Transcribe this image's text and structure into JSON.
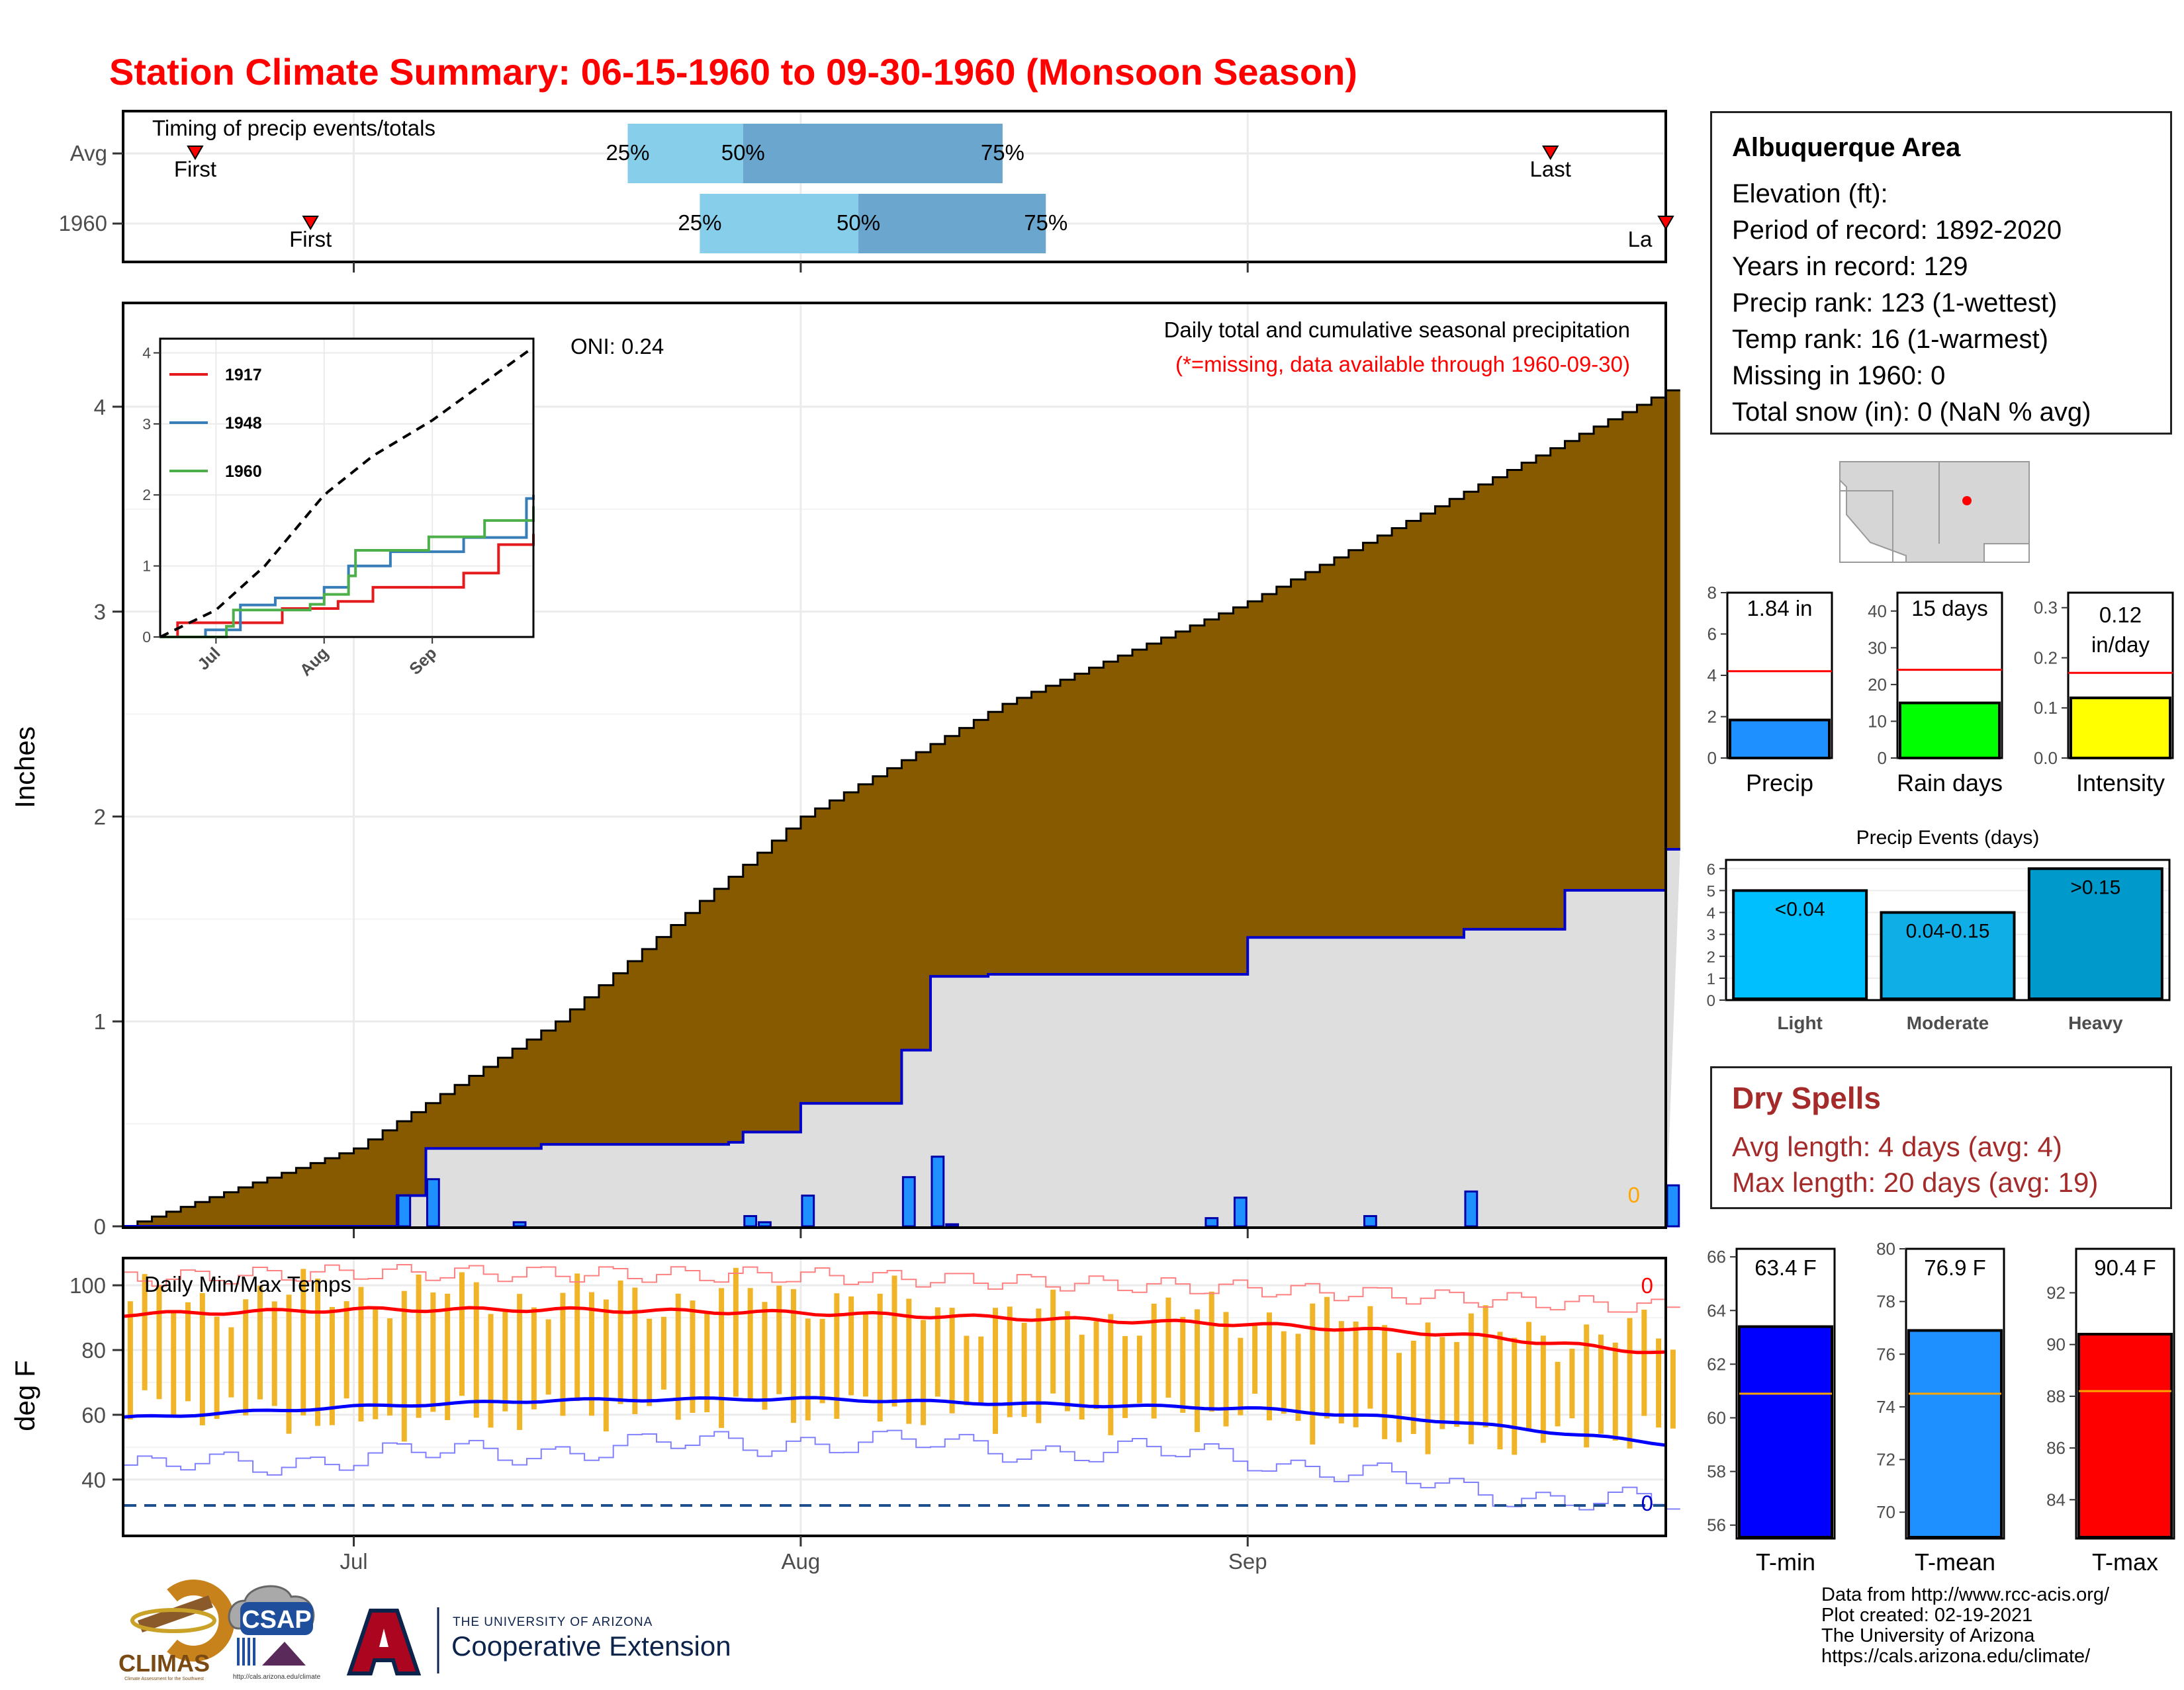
{
  "title": "Station Climate Summary: 06-15-1960 to 09-30-1960 (Monsoon Season)",
  "colors": {
    "title_red": "#ff0000",
    "cumulative_brown": "#875a00",
    "current_year_blue": "#0000cc",
    "daily_bar_blue": "#1e90ff",
    "tmin_blue": "#0000ff",
    "tmean_blue": "#1e90ff",
    "tmax_red": "#ff0000",
    "range_orange": "#f0b429",
    "timing_light": "#87ceeb",
    "timing_dark": "#6aa6cd",
    "precip_bar": "#1e90ff",
    "raindays_bar": "#00ff00",
    "intensity_bar": "#ffff00",
    "event_light": "#00bfff",
    "event_moderate": "#10aee6",
    "event_heavy": "#0099cc",
    "dry_spell_text": "#a52a2a"
  },
  "timing_panel": {
    "label": "Timing of precip events/totals",
    "rows": [
      {
        "name": "Avg",
        "first_date": "06-20",
        "last_date": "09-22",
        "p25": "07-20",
        "p50": "07-28",
        "p75": "08-15",
        "first_label": "First",
        "last_label": "Last",
        "pct_labels": [
          "25%",
          "50%",
          "75%"
        ]
      },
      {
        "name": "1960",
        "first_date": "06-28",
        "last_date": "09-30",
        "p25": "07-25",
        "p50": "08-05",
        "p75": "08-18",
        "first_label": "First",
        "last_label": "La",
        "pct_labels": [
          "25%",
          "50%",
          "75%"
        ]
      }
    ]
  },
  "main_panel": {
    "ylabel": "Inches",
    "oni_label": "ONI: 0.24",
    "subtitle": "Daily total and cumulative seasonal precipitation",
    "note": "(*=missing, data available through 1960-09-30)",
    "missing_count": "0",
    "x_ticks": [
      "Jul",
      "Aug",
      "Sep"
    ],
    "y_ticks": [
      "0",
      "1",
      "2",
      "3",
      "4"
    ]
  },
  "inset": {
    "y_ticks": [
      "0",
      "1",
      "2",
      "3",
      "4"
    ],
    "x_ticks": [
      "Jul",
      "Aug",
      "Sep"
    ],
    "legend": [
      {
        "name": "1917",
        "color": "#e41a1c"
      },
      {
        "name": "1948",
        "color": "#377eb8"
      },
      {
        "name": "1960",
        "color": "#4daf4a"
      }
    ]
  },
  "temp_panel": {
    "label": "Daily Min/Max Temps",
    "ylabel": "deg F",
    "y_ticks": [
      "40",
      "60",
      "80",
      "100"
    ],
    "max_missing": "0",
    "min_missing": "0",
    "freeze_line": 32
  },
  "station": {
    "name": "Albuquerque Area",
    "rows": [
      "Elevation (ft):",
      "Period of record: 1892-2020",
      "Years in record: 129",
      "Precip rank: 123 (1-wettest)",
      "Temp rank: 16 (1-warmest)",
      "Missing in 1960: 0",
      "Total snow (in): 0 (NaN % avg)"
    ]
  },
  "summary_bars": [
    {
      "label": "Precip",
      "value": 1.84,
      "avg": 4.2,
      "ylim": [
        0,
        8
      ],
      "ticks": [
        "0",
        "2",
        "4",
        "6",
        "8"
      ],
      "text1": "1.84 in",
      "text2": ""
    },
    {
      "label": "Rain days",
      "value": 15,
      "avg": 24,
      "ylim": [
        0,
        45
      ],
      "ticks": [
        "0",
        "10",
        "20",
        "30",
        "40"
      ],
      "text1": "15 days",
      "text2": ""
    },
    {
      "label": "Intensity",
      "value": 0.12,
      "avg": 0.17,
      "ylim": [
        0,
        0.33
      ],
      "ticks": [
        "0.0",
        "0.1",
        "0.2",
        "0.3"
      ],
      "text1": "0.12",
      "text2": "in/day"
    }
  ],
  "precip_events": {
    "title": "Precip Events (days)",
    "y_ticks": [
      "0",
      "1",
      "2",
      "3",
      "4",
      "5",
      "6"
    ],
    "bars": [
      {
        "label": "Light",
        "value": 5,
        "text": "<0.04"
      },
      {
        "label": "Moderate",
        "value": 4,
        "text": "0.04-0.15"
      },
      {
        "label": "Heavy",
        "value": 6,
        "text": ">0.15"
      }
    ]
  },
  "dry_spells": {
    "title": "Dry Spells",
    "avg_length": "Avg length: 4 days (avg: 4)",
    "max_length": "Max length: 20 days (avg: 19)"
  },
  "temp_bars": [
    {
      "label": "T-min",
      "value": 63.4,
      "avg": 60.9,
      "ylim": [
        55.5,
        66.3
      ],
      "ticks": [
        "56",
        "58",
        "60",
        "62",
        "64",
        "66"
      ],
      "text": "63.4 F"
    },
    {
      "label": "T-mean",
      "value": 76.9,
      "avg": 74.5,
      "ylim": [
        69,
        80
      ],
      "ticks": [
        "70",
        "72",
        "74",
        "76",
        "78",
        "80"
      ],
      "text": "76.9 F"
    },
    {
      "label": "T-max",
      "value": 90.4,
      "avg": 88.2,
      "ylim": [
        82.5,
        93.7
      ],
      "ticks": [
        "84",
        "86",
        "88",
        "90",
        "92"
      ],
      "text": "90.4 F"
    }
  ],
  "logos": [
    "CLIMAS",
    "CSAP",
    "THE UNIVERSITY OF ARIZONA",
    "Cooperative Extension"
  ],
  "logo_small": [
    "Climate Assessment for the Southwest",
    "http://cals.arizona.edu/climate"
  ],
  "credits": [
    "Data from http://www.rcc-acis.org/",
    "Plot created: 02-19-2021",
    "The University of Arizona",
    "https://cals.arizona.edu/climate/"
  ],
  "chart_data": [
    {
      "type": "area",
      "name": "cumulative precipitation",
      "x_range": [
        "06-15",
        "09-30"
      ],
      "ylim": [
        0,
        4.5
      ],
      "avg_cumulative": {
        "x": [
          "06-15",
          "07-01",
          "07-15",
          "08-01",
          "08-15",
          "09-01",
          "09-15",
          "09-30"
        ],
        "y": [
          0,
          0.38,
          1.0,
          2.0,
          2.55,
          3.05,
          3.55,
          4.08
        ]
      },
      "year_cumulative": {
        "x": [
          "06-15",
          "07-03",
          "07-04",
          "07-06",
          "07-14",
          "07-27",
          "07-28",
          "08-01",
          "08-08",
          "08-10",
          "08-14",
          "09-01",
          "09-16",
          "09-23",
          "09-29",
          "09-30"
        ],
        "y": [
          0,
          0,
          0.15,
          0.38,
          0.4,
          0.41,
          0.46,
          0.6,
          0.86,
          1.22,
          1.23,
          1.41,
          1.45,
          1.64,
          1.64,
          1.84
        ]
      },
      "daily": {
        "x": [
          "07-04",
          "07-06",
          "07-12",
          "07-28",
          "07-29",
          "08-01",
          "08-08",
          "08-10",
          "08-11",
          "08-29",
          "08-31",
          "09-09",
          "09-16",
          "09-30"
        ],
        "y": [
          0.15,
          0.23,
          0.02,
          0.05,
          0.02,
          0.15,
          0.24,
          0.34,
          0.01,
          0.04,
          0.14,
          0.05,
          0.17,
          0.2
        ]
      }
    },
    {
      "type": "line",
      "name": "inset historical cumulative",
      "x_range": [
        "06-15",
        "09-30"
      ],
      "ylim": [
        0,
        4.2
      ],
      "avg": {
        "x": [
          "06-15",
          "07-01",
          "07-15",
          "08-01",
          "08-15",
          "09-01",
          "09-15",
          "09-30"
        ],
        "y": [
          0,
          0.38,
          1.0,
          2.0,
          2.55,
          3.05,
          3.55,
          4.08
        ]
      },
      "series": [
        {
          "name": "1917",
          "x": [
            "06-15",
            "06-20",
            "07-20",
            "08-05",
            "08-15",
            "09-10",
            "09-20",
            "09-30"
          ],
          "y": [
            0,
            0.2,
            0.4,
            0.5,
            0.7,
            0.9,
            1.3,
            1.45
          ]
        },
        {
          "name": "1948",
          "x": [
            "06-15",
            "06-28",
            "07-08",
            "07-18",
            "08-01",
            "08-08",
            "08-20",
            "09-10",
            "09-28",
            "09-30"
          ],
          "y": [
            0,
            0.1,
            0.45,
            0.55,
            0.7,
            1.0,
            1.2,
            1.4,
            1.95,
            2.0
          ]
        },
        {
          "name": "1960",
          "x": [
            "06-15",
            "07-04",
            "07-06",
            "07-28",
            "08-01",
            "08-08",
            "08-10",
            "08-31",
            "09-16",
            "09-30"
          ],
          "y": [
            0,
            0.15,
            0.38,
            0.46,
            0.6,
            0.86,
            1.22,
            1.41,
            1.64,
            1.84
          ]
        }
      ]
    },
    {
      "type": "line",
      "name": "daily temperatures",
      "x_range": [
        "06-15",
        "09-30"
      ],
      "ylim": [
        23,
        108
      ],
      "avg_max": {
        "x": [
          "06-15",
          "07-01",
          "07-15",
          "08-01",
          "08-15",
          "09-01",
          "09-15",
          "09-30"
        ],
        "y": [
          91,
          92.5,
          92.5,
          91.5,
          90,
          88,
          85,
          79
        ]
      },
      "avg_min": {
        "x": [
          "06-15",
          "07-01",
          "07-15",
          "08-01",
          "08-15",
          "09-01",
          "09-15",
          "09-30"
        ],
        "y": [
          59,
          62.5,
          64.5,
          65,
          63.5,
          62,
          58,
          51
        ]
      },
      "record_max": {
        "x": [
          "06-15",
          "07-01",
          "08-01",
          "09-01",
          "09-30"
        ],
        "y": [
          102,
          104,
          103,
          99,
          93
        ]
      },
      "record_min": {
        "x": [
          "06-15",
          "07-01",
          "08-01",
          "09-01",
          "09-15",
          "09-30"
        ],
        "y": [
          43,
          47,
          52,
          47,
          37,
          32
        ]
      },
      "daily_range_sample": {
        "x": [
          "06-20",
          "07-01",
          "07-15",
          "08-01",
          "08-15",
          "09-01",
          "09-15",
          "09-30"
        ],
        "ymin": [
          62,
          58,
          61,
          62,
          60,
          60,
          52,
          55
        ],
        "ymax": [
          95,
          98,
          96,
          97,
          90,
          91,
          86,
          84
        ]
      }
    }
  ]
}
